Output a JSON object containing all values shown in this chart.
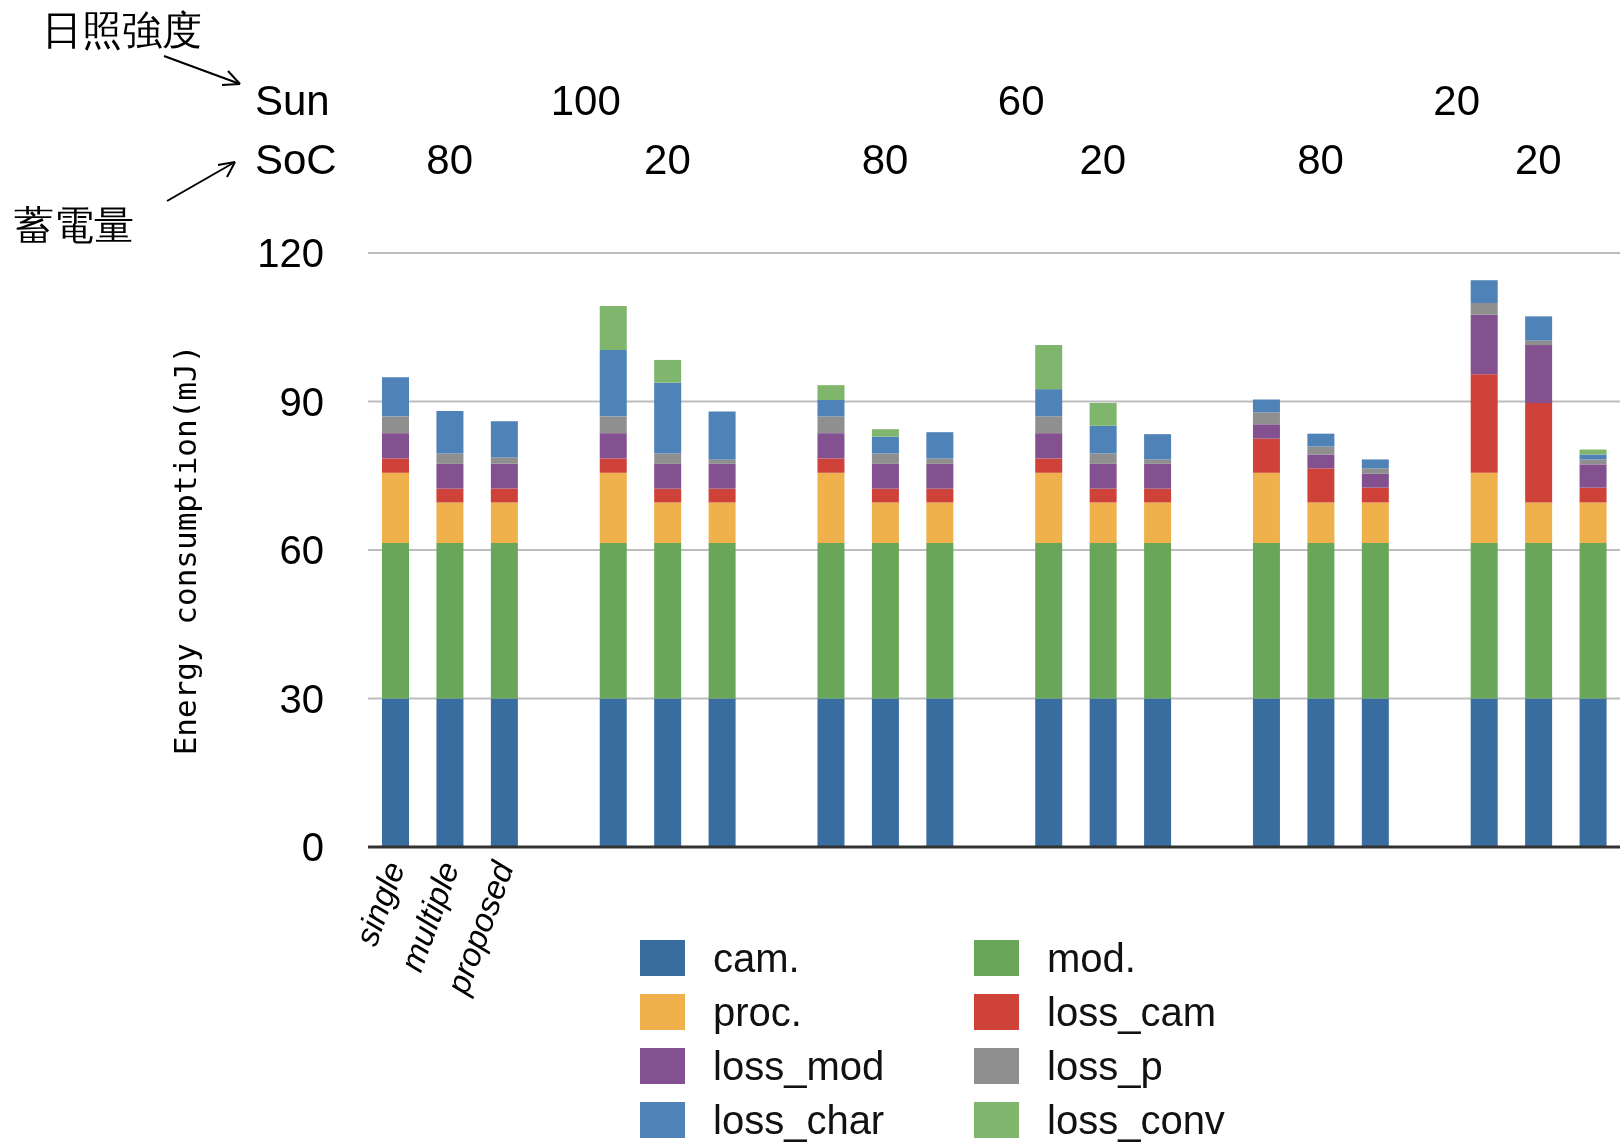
{
  "chart_data": {
    "type": "bar",
    "stacked": true,
    "ylabel": "Energy consumption(mJ)",
    "categories": [
      "single",
      "multiple",
      "proposed",
      null,
      null,
      null,
      null,
      null,
      null,
      null,
      null,
      null,
      null,
      null,
      null,
      null,
      null,
      null,
      null,
      null,
      null,
      null,
      null
    ],
    "series": [
      {
        "name": "cam.",
        "color": "#3a6d9f",
        "values": [
          30,
          30,
          30,
          null,
          30,
          30,
          30,
          null,
          30,
          30,
          30,
          null,
          30,
          30,
          30,
          null,
          30,
          30,
          30,
          null,
          30,
          30,
          30
        ]
      },
      {
        "name": "mod.",
        "color": "#6aa65a",
        "values": [
          31.4,
          31.4,
          31.4,
          null,
          31.4,
          31.4,
          31.4,
          null,
          31.4,
          31.4,
          31.4,
          null,
          31.4,
          31.4,
          31.4,
          null,
          31.4,
          31.4,
          31.4,
          null,
          31.4,
          31.4,
          31.4
        ]
      },
      {
        "name": "proc.",
        "color": "#eeb14c",
        "values": [
          14.2,
          8.2,
          8.2,
          null,
          14.2,
          8.2,
          8.2,
          null,
          14.2,
          8.2,
          8.2,
          null,
          14.2,
          8.2,
          8.2,
          null,
          14.2,
          8.2,
          8.2,
          null,
          14.2,
          8.2,
          8.2
        ]
      },
      {
        "name": "loss_cam",
        "color": "#cf423a",
        "values": [
          2.9,
          2.8,
          2.8,
          null,
          2.9,
          2.8,
          2.8,
          null,
          2.9,
          2.8,
          2.8,
          null,
          2.9,
          2.8,
          2.8,
          null,
          6.9,
          6.9,
          3.0,
          null,
          19.9,
          20.1,
          3.0
        ]
      },
      {
        "name": "loss_mod",
        "color": "#845190",
        "values": [
          5.1,
          5.0,
          5.0,
          null,
          5.1,
          5.0,
          5.0,
          null,
          5.1,
          5.0,
          5.0,
          null,
          5.1,
          5.0,
          5.0,
          null,
          2.9,
          2.8,
          2.8,
          null,
          12.0,
          11.7,
          4.7
        ]
      },
      {
        "name": "loss_p",
        "color": "#8f8f8f",
        "values": [
          3.4,
          2.1,
          1.3,
          null,
          3.4,
          2.1,
          0.9,
          null,
          3.4,
          2.1,
          1.1,
          null,
          3.4,
          2.1,
          0.9,
          null,
          2.4,
          1.6,
          1.1,
          null,
          2.4,
          0.9,
          1.0
        ]
      },
      {
        "name": "loss_char",
        "color": "#4f82b6",
        "values": [
          7.9,
          8.6,
          7.3,
          null,
          13.4,
          14.3,
          9.7,
          null,
          3.3,
          3.4,
          5.3,
          null,
          5.5,
          5.6,
          5.1,
          null,
          2.6,
          2.6,
          1.8,
          null,
          4.6,
          4.9,
          1.0
        ]
      },
      {
        "name": "loss_conv",
        "color": "#7fb56c",
        "values": [
          null,
          null,
          null,
          null,
          8.9,
          4.6,
          null,
          null,
          3.0,
          1.5,
          null,
          null,
          8.9,
          4.6,
          null,
          null,
          null,
          null,
          null,
          null,
          null,
          null,
          1.0
        ]
      }
    ],
    "ylim": [
      0,
      120
    ],
    "yticks": [
      0,
      30,
      60,
      90,
      120
    ],
    "grid": "y",
    "legend": "bottom",
    "annotations": [
      "日照強度",
      "蓄電量",
      "Sun",
      "SoC",
      "100",
      "60",
      "20",
      "80",
      "20",
      "80",
      "20",
      "80",
      "20"
    ]
  }
}
